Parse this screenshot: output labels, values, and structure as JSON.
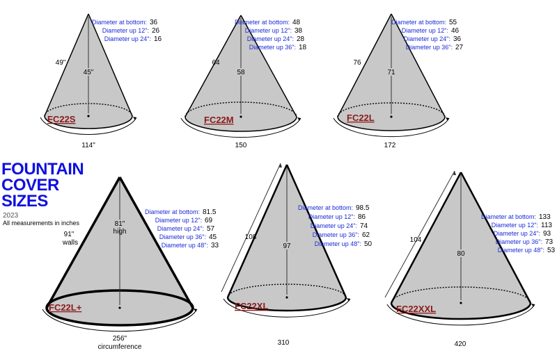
{
  "header": {
    "title_lines": [
      "FOUNTAIN",
      "COVER",
      "SIZES"
    ],
    "year": "2023",
    "note": "All measurements in inches"
  },
  "colors": {
    "title": "#1010e0",
    "spec_text": "#1a2ad8",
    "model_label": "#8b1a1a",
    "fill": "#c8c8c8",
    "outline": "#000000"
  },
  "covers": [
    {
      "name": "FC22S",
      "wall": "49\"",
      "height": "45\"",
      "circumference": "114\"",
      "specs": [
        {
          "label": "Diameter at bottom:",
          "value": "36"
        },
        {
          "label": "Diameter up 12\":",
          "value": "26"
        },
        {
          "label": "Diameter up 24\":",
          "value": "16"
        }
      ]
    },
    {
      "name": "FC22M",
      "wall": "64",
      "height": "58",
      "circumference": "150",
      "specs": [
        {
          "label": "Diameter at bottom:",
          "value": "48"
        },
        {
          "label": "Diameter up 12\":",
          "value": "38"
        },
        {
          "label": "Diameter up 24\":",
          "value": "28"
        },
        {
          "label": "Diameter up 36\":",
          "value": "18"
        }
      ]
    },
    {
      "name": "FC22L",
      "wall": "76",
      "height": "71",
      "circumference": "172",
      "specs": [
        {
          "label": "Diameter at bottom:",
          "value": "55"
        },
        {
          "label": "Diameter up 12\":",
          "value": "46"
        },
        {
          "label": "Diameter up 24\":",
          "value": "36"
        },
        {
          "label": "Diameter up 36\":",
          "value": "27"
        }
      ]
    },
    {
      "name": "FC22L+",
      "wall": "91\"",
      "wall_caption": "walls",
      "height": "81\"",
      "height_caption": "high",
      "circumference": "256\"",
      "circumference_caption": "circumference",
      "specs": [
        {
          "label": "Diameter at bottom:",
          "value": "81.5"
        },
        {
          "label": "Diameter up 12\":",
          "value": "69"
        },
        {
          "label": "Diameter up 24\":",
          "value": "57"
        },
        {
          "label": "Diameter up 36\":",
          "value": "45"
        },
        {
          "label": "Diameter up 48\":",
          "value": "33"
        }
      ]
    },
    {
      "name": "FC22XL",
      "wall": "108",
      "height": "97",
      "circumference": "310",
      "specs": [
        {
          "label": "Diameter at bottom:",
          "value": "98.5"
        },
        {
          "label": "Diameter up 12\":",
          "value": "86"
        },
        {
          "label": "Diameter up 24\":",
          "value": "74"
        },
        {
          "label": "Diameter up 36\":",
          "value": "62"
        },
        {
          "label": "Diameter up 48\":",
          "value": "50"
        }
      ]
    },
    {
      "name": "FC22XXL",
      "wall": "104",
      "height": "80",
      "circumference": "420",
      "specs": [
        {
          "label": "Diameter at bottom:",
          "value": "133"
        },
        {
          "label": "Diameter up 12\":",
          "value": "113"
        },
        {
          "label": "Diameter up 24\":",
          "value": "93"
        },
        {
          "label": "Diameter up 36\":",
          "value": "73"
        },
        {
          "label": "Diameter up 48\":",
          "value": "53"
        }
      ]
    }
  ]
}
